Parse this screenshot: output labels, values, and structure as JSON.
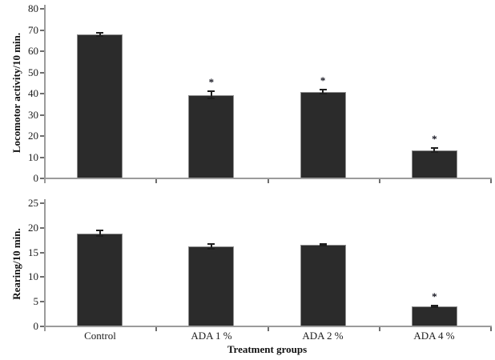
{
  "figure_title": "",
  "categories": [
    "Control",
    "ADA 1 %",
    "ADA 2 %",
    "ADA 4 %"
  ],
  "x_axis_title": "Treatment groups",
  "significance_marker": "*",
  "colors": {
    "bar_fill": "#2b2b2b",
    "bar_outline": "#8d8d8d",
    "axis_line": "#9b9b9b",
    "tick_line": "#6e6e6e",
    "error_bar": "#1f1f1f",
    "text": "#1c1c1c"
  },
  "chart_data": [
    {
      "type": "bar",
      "title": "",
      "ylabel": "Locomotor activity/10 min.",
      "xlabel": "",
      "categories": [
        "Control",
        "ADA 1 %",
        "ADA 2 %",
        "ADA 4 %"
      ],
      "values": [
        67.5,
        39,
        40.5,
        13
      ],
      "errors": [
        1.1,
        2,
        1.4,
        1.2
      ],
      "significant": [
        false,
        true,
        true,
        true
      ],
      "ylim": [
        0,
        80
      ],
      "ytick_step": 10,
      "grid": false,
      "legend": false
    },
    {
      "type": "bar",
      "title": "",
      "ylabel": "Rearing/10 min.",
      "xlabel": "Treatment groups",
      "categories": [
        "Control",
        "ADA 1 %",
        "ADA 2 %",
        "ADA 4 %"
      ],
      "values": [
        18.7,
        16.1,
        16.4,
        3.9
      ],
      "errors": [
        0.7,
        0.6,
        0.3,
        0.3
      ],
      "significant": [
        false,
        false,
        false,
        true
      ],
      "ylim": [
        0,
        25
      ],
      "ytick_step": 5,
      "grid": false,
      "legend": false
    }
  ]
}
